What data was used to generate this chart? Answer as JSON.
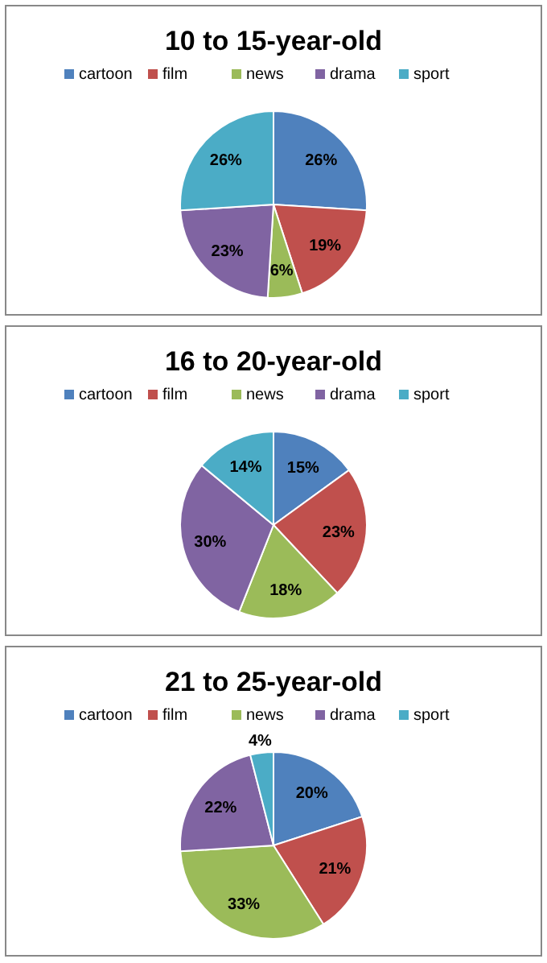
{
  "chart_data": [
    {
      "type": "pie",
      "title": "10 to 15-year-old",
      "categories": [
        "cartoon",
        "film",
        "news",
        "drama",
        "sport"
      ],
      "values": [
        26,
        19,
        6,
        23,
        26
      ],
      "value_labels": [
        "26%",
        "19%",
        "6%",
        "23%",
        "26%"
      ],
      "colors": [
        "#4f81bd",
        "#c0504d",
        "#9bbb59",
        "#8064a2",
        "#4bacc6"
      ],
      "legend": "top"
    },
    {
      "type": "pie",
      "title": "16 to 20-year-old",
      "categories": [
        "cartoon",
        "film",
        "news",
        "drama",
        "sport"
      ],
      "values": [
        15,
        23,
        18,
        30,
        14
      ],
      "value_labels": [
        "15%",
        "23%",
        "18%",
        "30%",
        "14%"
      ],
      "colors": [
        "#4f81bd",
        "#c0504d",
        "#9bbb59",
        "#8064a2",
        "#4bacc6"
      ],
      "legend": "top"
    },
    {
      "type": "pie",
      "title": "21 to 25-year-old",
      "categories": [
        "cartoon",
        "film",
        "news",
        "drama",
        "sport"
      ],
      "values": [
        20,
        21,
        33,
        22,
        4
      ],
      "value_labels": [
        "20%",
        "21%",
        "33%",
        "22%",
        "4%"
      ],
      "colors": [
        "#4f81bd",
        "#c0504d",
        "#9bbb59",
        "#8064a2",
        "#4bacc6"
      ],
      "legend": "top"
    }
  ]
}
